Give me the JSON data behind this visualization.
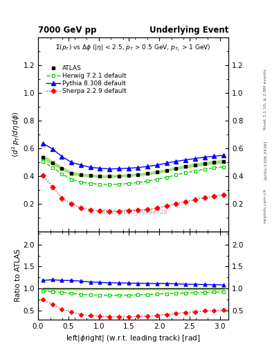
{
  "title_left": "7000 GeV pp",
  "title_right": "Underlying Event",
  "subtitle": "Σ(p$_{T}$) vs Δϕ (|η| < 2.5, p$_{T}$ > 0.5 GeV, p$_{T_1}$ > 1 GeV)",
  "xlabel": "left|ϕright| (w.r.t. leading track) [rad]",
  "ylabel_main": "$\\langle d^2\\,p_T/d\\eta\\,d\\phi\\rangle$",
  "ylabel_ratio": "Ratio to ATLAS",
  "watermark": "ATLAS_2010_S8994728",
  "rivet_text": "Rivet 3.1.10, ≥ 2.8M events",
  "arxiv_text": "[arXiv:1306.3436]",
  "mcplots_text": "mcplots.cern.ch",
  "xlim": [
    0,
    3.14159
  ],
  "ylim_main": [
    0,
    1.4
  ],
  "ylim_ratio": [
    0.3,
    2.3
  ],
  "yticks_main": [
    0.2,
    0.4,
    0.6,
    0.8,
    1.0,
    1.2
  ],
  "yticks_ratio": [
    0.5,
    1.0,
    1.5,
    2.0
  ],
  "atlas_x": [
    0.0785,
    0.2356,
    0.3927,
    0.5498,
    0.7069,
    0.864,
    1.021,
    1.178,
    1.335,
    1.492,
    1.649,
    1.806,
    1.963,
    2.12,
    2.278,
    2.435,
    2.592,
    2.749,
    2.906,
    3.063
  ],
  "atlas_y": [
    0.535,
    0.495,
    0.455,
    0.42,
    0.408,
    0.402,
    0.398,
    0.398,
    0.4,
    0.405,
    0.41,
    0.418,
    0.428,
    0.44,
    0.455,
    0.468,
    0.478,
    0.49,
    0.498,
    0.505
  ],
  "atlas_yerr": [
    0.012,
    0.01,
    0.008,
    0.007,
    0.007,
    0.006,
    0.006,
    0.006,
    0.006,
    0.006,
    0.006,
    0.006,
    0.007,
    0.007,
    0.007,
    0.008,
    0.008,
    0.009,
    0.009,
    0.01
  ],
  "herwig_x": [
    0.0785,
    0.2356,
    0.3927,
    0.5498,
    0.7069,
    0.864,
    1.021,
    1.178,
    1.335,
    1.492,
    1.649,
    1.806,
    1.963,
    2.12,
    2.278,
    2.435,
    2.592,
    2.749,
    2.906,
    3.063
  ],
  "herwig_y": [
    0.505,
    0.46,
    0.415,
    0.375,
    0.355,
    0.345,
    0.34,
    0.338,
    0.34,
    0.345,
    0.352,
    0.362,
    0.375,
    0.39,
    0.408,
    0.422,
    0.435,
    0.448,
    0.458,
    0.465
  ],
  "pythia_x": [
    0.0785,
    0.2356,
    0.3927,
    0.5498,
    0.7069,
    0.864,
    1.021,
    1.178,
    1.335,
    1.492,
    1.649,
    1.806,
    1.963,
    2.12,
    2.278,
    2.435,
    2.592,
    2.749,
    2.906,
    3.063
  ],
  "pythia_y": [
    0.635,
    0.595,
    0.54,
    0.498,
    0.478,
    0.462,
    0.455,
    0.45,
    0.452,
    0.455,
    0.46,
    0.468,
    0.478,
    0.492,
    0.505,
    0.515,
    0.525,
    0.535,
    0.542,
    0.548
  ],
  "sherpa_x": [
    0.0785,
    0.2356,
    0.3927,
    0.5498,
    0.7069,
    0.864,
    1.021,
    1.178,
    1.335,
    1.492,
    1.649,
    1.806,
    1.963,
    2.12,
    2.278,
    2.435,
    2.592,
    2.749,
    2.906,
    3.063
  ],
  "sherpa_y": [
    0.405,
    0.32,
    0.24,
    0.198,
    0.168,
    0.155,
    0.148,
    0.145,
    0.145,
    0.148,
    0.152,
    0.158,
    0.168,
    0.182,
    0.198,
    0.215,
    0.228,
    0.242,
    0.252,
    0.262
  ],
  "atlas_color": "#000000",
  "herwig_color": "#00cc00",
  "pythia_color": "#0000ff",
  "sherpa_color": "#ff0000",
  "band_color_yellow": "#ffffaa",
  "band_color_green": "#99dd99",
  "legend_labels": [
    "ATLAS",
    "Herwig 7.2.1 default",
    "Pythia 8.308 default",
    "Sherpa 2.2.9 default"
  ]
}
